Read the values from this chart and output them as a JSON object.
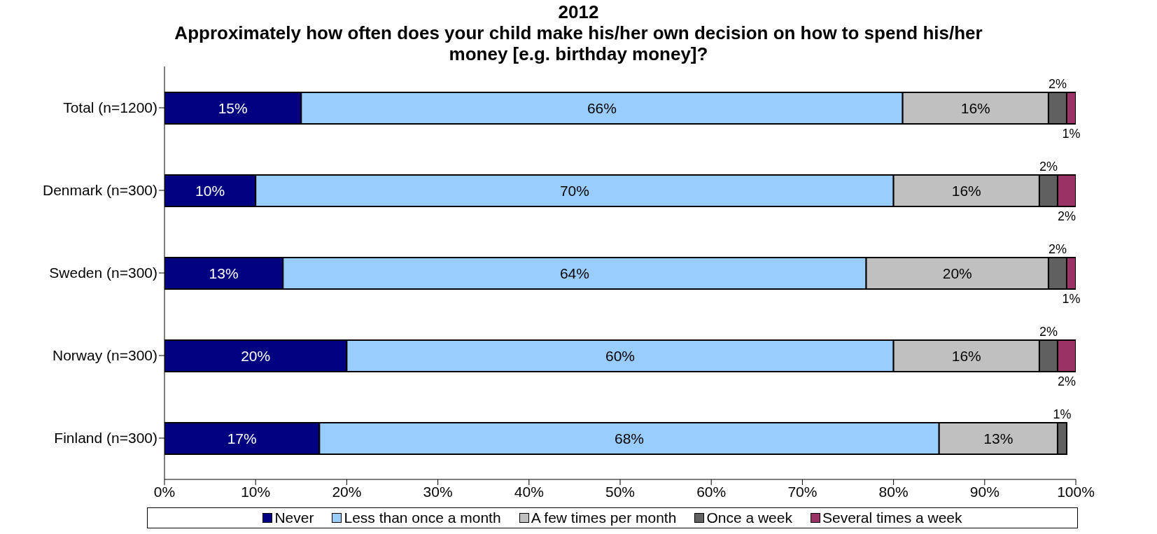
{
  "chart_data": {
    "type": "bar",
    "orientation": "horizontal",
    "stacked": true,
    "title": "2012",
    "subtitle": "Approximately how often does your child make his/her own decision on how to spend his/her money [e.g. birthday money]?",
    "categories": [
      "Total (n=1200)",
      "Denmark (n=300)",
      "Sweden (n=300)",
      "Norway (n=300)",
      "Finland (n=300)"
    ],
    "series": [
      {
        "name": "Never",
        "color": "#000080",
        "values": [
          15,
          10,
          13,
          20,
          17
        ],
        "value_labels": [
          "15%",
          "10%",
          "13%",
          "20%",
          "17%"
        ]
      },
      {
        "name": "Less than once a month",
        "color": "#99ccff",
        "values": [
          66,
          70,
          64,
          60,
          68
        ],
        "value_labels": [
          "66%",
          "70%",
          "64%",
          "60%",
          "68%"
        ]
      },
      {
        "name": "A few times per month",
        "color": "#c0c0c0",
        "values": [
          16,
          16,
          20,
          16,
          13
        ],
        "value_labels": [
          "16%",
          "16%",
          "20%",
          "16%",
          "13%"
        ]
      },
      {
        "name": "Once a week",
        "color": "#606060",
        "values": [
          2,
          2,
          2,
          2,
          1
        ],
        "value_labels": [
          "2%",
          "2%",
          "2%",
          "2%",
          "1%"
        ]
      },
      {
        "name": "Several times a week",
        "color": "#993366",
        "values": [
          1,
          2,
          1,
          2,
          null
        ],
        "value_labels": [
          "1%",
          "2%",
          "1%",
          "2%",
          null
        ]
      }
    ],
    "xlim": [
      0,
      100
    ],
    "xticks": [
      {
        "value": 0,
        "label": "0%"
      },
      {
        "value": 10,
        "label": "10%"
      },
      {
        "value": 20,
        "label": "20%"
      },
      {
        "value": 30,
        "label": "30%"
      },
      {
        "value": 40,
        "label": "40%"
      },
      {
        "value": 50,
        "label": "50%"
      },
      {
        "value": 60,
        "label": "60%"
      },
      {
        "value": 70,
        "label": "70%"
      },
      {
        "value": 80,
        "label": "80%"
      },
      {
        "value": 90,
        "label": "90%"
      },
      {
        "value": 100,
        "label": "100%"
      }
    ],
    "grid": false,
    "legend": "bottom"
  }
}
